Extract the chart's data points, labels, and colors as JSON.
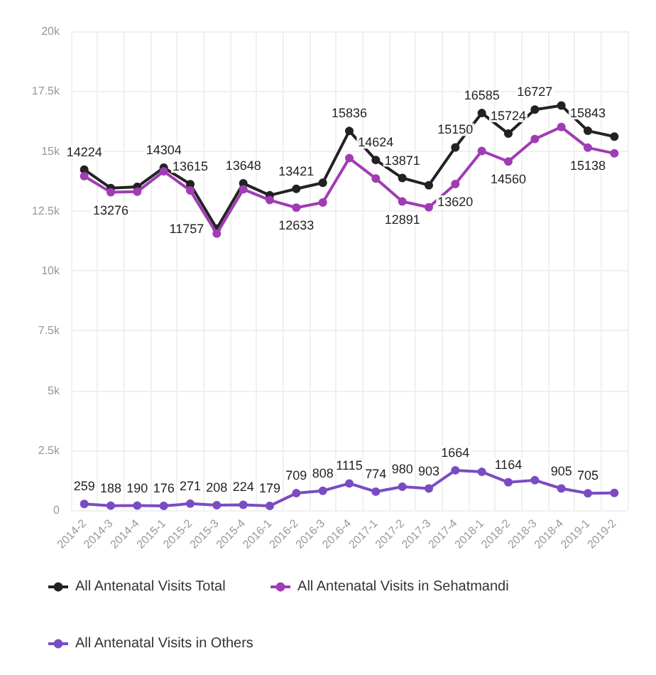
{
  "chart_data": {
    "type": "line",
    "categories": [
      "2014-2",
      "2014-3",
      "2014-4",
      "2015-1",
      "2015-2",
      "2015-3",
      "2015-4",
      "2016-1",
      "2016-2",
      "2016-3",
      "2016-4",
      "2017-1",
      "2017-2",
      "2017-3",
      "2017-4",
      "2018-1",
      "2018-2",
      "2018-3",
      "2018-4",
      "2019-1",
      "2019-2"
    ],
    "series": [
      {
        "name": "All Antenatal Visits Total",
        "color": "#222222",
        "values": [
          14224,
          13450,
          13500,
          14304,
          13615,
          11757,
          13648,
          13150,
          13421,
          13670,
          15836,
          14624,
          13871,
          13570,
          15150,
          16585,
          15724,
          16727,
          16900,
          15843,
          15600
        ],
        "value_labels": [
          "14224",
          null,
          null,
          "14304",
          "13615",
          "11757",
          "13648",
          null,
          "13421",
          null,
          "15836",
          "14624",
          "13871",
          null,
          "15150",
          "16585",
          "15724",
          "16727",
          null,
          "15843",
          null
        ]
      },
      {
        "name": "All Antenatal Visits in Sehatmandi",
        "color": "#a03cb4",
        "values": [
          13950,
          13276,
          13300,
          14150,
          13350,
          11550,
          13400,
          12950,
          12633,
          12850,
          14700,
          13850,
          12891,
          12650,
          13620,
          15000,
          14560,
          15500,
          16000,
          15138,
          14900
        ],
        "value_labels": [
          null,
          "13276",
          null,
          null,
          null,
          null,
          null,
          null,
          "12633",
          null,
          null,
          null,
          "12891",
          null,
          "13620",
          null,
          "14560",
          null,
          null,
          "15138",
          null
        ]
      },
      {
        "name": "All Antenatal Visits in Others",
        "color": "#7a4cc4",
        "values": [
          259,
          188,
          190,
          176,
          271,
          208,
          224,
          179,
          709,
          808,
          1115,
          774,
          980,
          903,
          1664,
          1600,
          1164,
          1250,
          905,
          705,
          720
        ],
        "value_labels": [
          "259",
          "188",
          "190",
          "176",
          "271",
          "208",
          "224",
          "179",
          "709",
          "808",
          "1115",
          "774",
          "980",
          "903",
          "1664",
          null,
          "1164",
          null,
          "905",
          "705",
          null
        ]
      }
    ],
    "ylim": [
      0,
      20000
    ],
    "yticks": [
      {
        "value": 0,
        "label": "0"
      },
      {
        "value": 2500,
        "label": "2.5k"
      },
      {
        "value": 5000,
        "label": "5k"
      },
      {
        "value": 7500,
        "label": "7.5k"
      },
      {
        "value": 10000,
        "label": "10k"
      },
      {
        "value": 12500,
        "label": "12.5k"
      },
      {
        "value": 15000,
        "label": "15k"
      },
      {
        "value": 17500,
        "label": "17.5k"
      },
      {
        "value": 20000,
        "label": "20k"
      }
    ],
    "grid": true,
    "legend": "bottom",
    "marker": "circle",
    "line_style": "solid"
  }
}
